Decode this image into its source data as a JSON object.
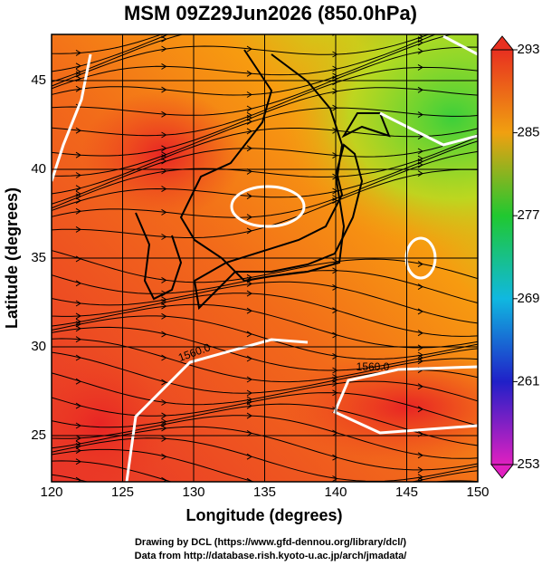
{
  "chart_data": {
    "type": "map",
    "title": "MSM 09Z29Jun2026 (850.0hPa)",
    "x_label": "Longitude (degrees)",
    "y_label": "Latitude  (degrees)",
    "xlim": [
      120,
      150
    ],
    "xticks": [
      120,
      125,
      130,
      135,
      140,
      145,
      150
    ],
    "ylim": [
      22.4,
      47.6
    ],
    "yticks": [
      25,
      30,
      35,
      40,
      45
    ],
    "grid": true,
    "colorbar": {
      "lim": [
        253,
        293
      ],
      "ticks": [
        253,
        261,
        269,
        277,
        285,
        293
      ]
    },
    "contour_labels": [
      "1560.0",
      "1560.0"
    ],
    "credits": [
      "Drawing by DCL (https://www.gfd-dennou.org/library/dcl/)",
      "Data from http://database.rish.kyoto-u.ac.jp/arch/jmadata/"
    ]
  }
}
